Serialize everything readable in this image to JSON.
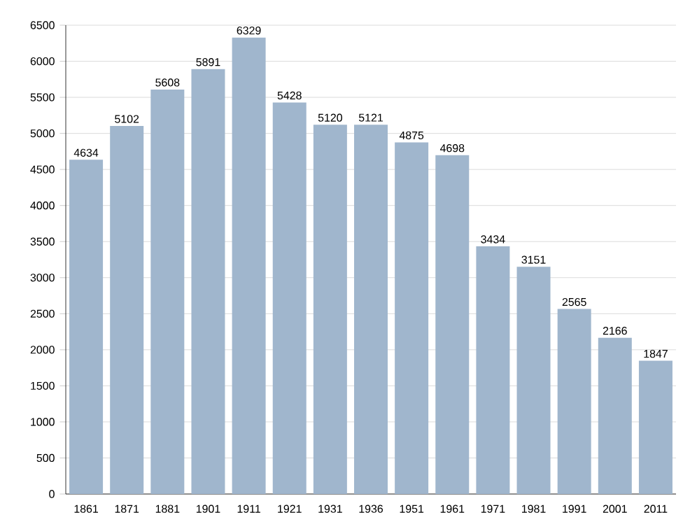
{
  "chart_data": {
    "type": "bar",
    "categories": [
      "1861",
      "1871",
      "1881",
      "1901",
      "1911",
      "1921",
      "1931",
      "1936",
      "1951",
      "1961",
      "1971",
      "1981",
      "1991",
      "2001",
      "2011"
    ],
    "values": [
      4634,
      5102,
      5608,
      5891,
      6329,
      5428,
      5120,
      5121,
      4875,
      4698,
      3434,
      3151,
      2565,
      2166,
      1847
    ],
    "color": "#a0b6cd",
    "data_labels": true,
    "grid": "y",
    "ylim": [
      0,
      6500
    ],
    "yticks": [
      0,
      500,
      1000,
      1500,
      2000,
      2500,
      3000,
      3500,
      4000,
      4500,
      5000,
      5500,
      6000,
      6500
    ]
  }
}
